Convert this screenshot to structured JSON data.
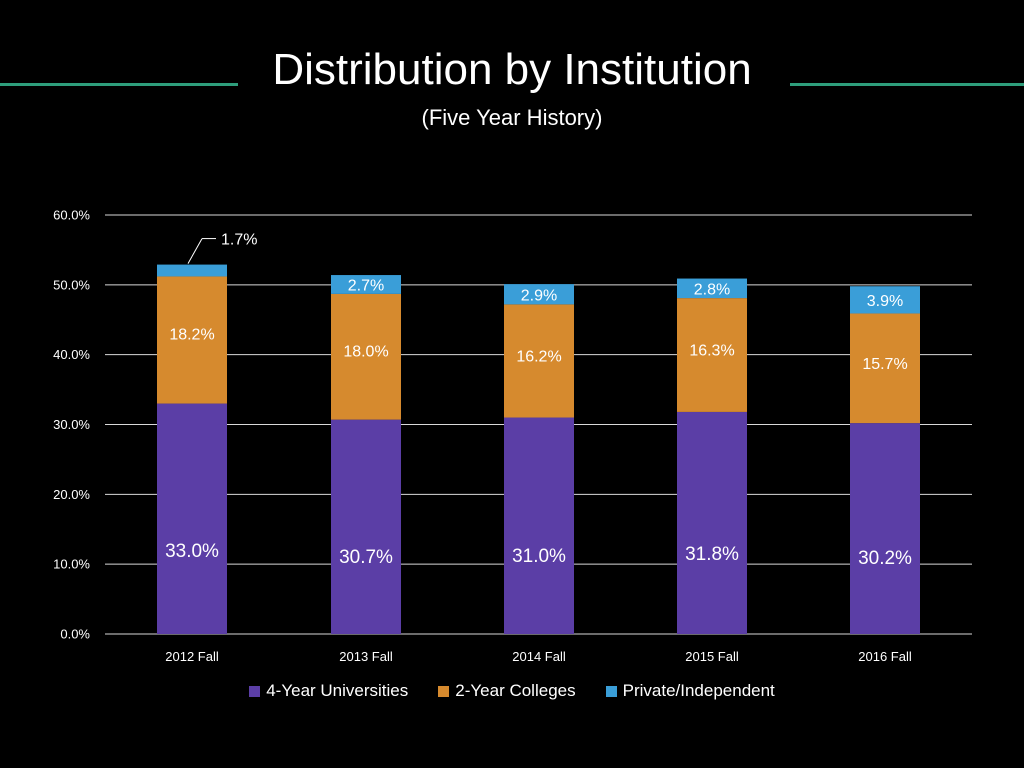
{
  "slide": {
    "title": "Distribution by Institution",
    "subtitle": "(Five Year History)"
  },
  "colors": {
    "background": "#000000",
    "title_rule": "#2e9e7c",
    "grid": "#d9d9d9",
    "four_year": "#5b3ea6",
    "two_year": "#d68a2e",
    "private": "#3a9ed8"
  },
  "chart_data": {
    "type": "bar",
    "stacked": true,
    "title": "Distribution by Institution",
    "subtitle": "(Five Year History)",
    "categories": [
      "2012 Fall",
      "2013 Fall",
      "2014 Fall",
      "2015 Fall",
      "2016 Fall"
    ],
    "series": [
      {
        "name": "4-Year Universities",
        "color": "#5b3ea6",
        "values": [
          33.0,
          30.7,
          31.0,
          31.8,
          30.2
        ],
        "labels": [
          "33.0%",
          "30.7%",
          "31.0%",
          "31.8%",
          "30.2%"
        ]
      },
      {
        "name": "2-Year Colleges",
        "color": "#d68a2e",
        "values": [
          18.2,
          18.0,
          16.2,
          16.3,
          15.7
        ],
        "labels": [
          "18.2%",
          "18.0%",
          "16.2%",
          "16.3%",
          "15.7%"
        ]
      },
      {
        "name": "Private/Independent",
        "color": "#3a9ed8",
        "values": [
          1.7,
          2.7,
          2.9,
          2.8,
          3.9
        ],
        "labels": [
          "1.7%",
          "2.7%",
          "2.9%",
          "2.8%",
          "3.9%"
        ]
      }
    ],
    "y_ticks": [
      "0.0%",
      "10.0%",
      "20.0%",
      "30.0%",
      "40.0%",
      "50.0%",
      "60.0%"
    ],
    "ylim": [
      0,
      60
    ],
    "grid": true,
    "legend": "bottom",
    "xlabel": "",
    "ylabel": ""
  }
}
